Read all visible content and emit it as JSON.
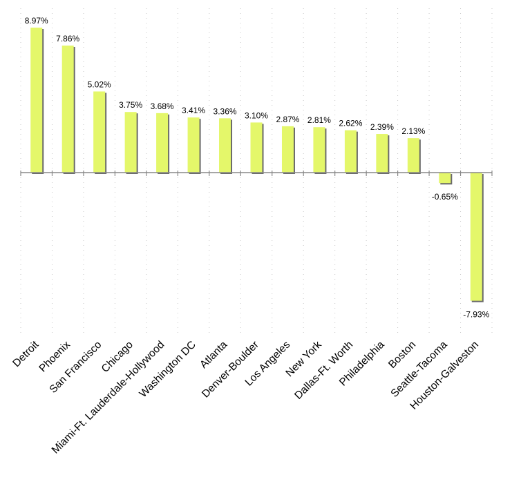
{
  "chart_data": {
    "type": "bar",
    "title": "",
    "xlabel": "",
    "ylabel": "",
    "grid": "vertical dotted",
    "legend": "none",
    "colors": {
      "bar": "#e4f76a",
      "shadow": "#6a6a6a",
      "axis": "#888888",
      "grid": "#c8c8c8"
    },
    "ylim": [
      -10.5,
      9.4
    ],
    "categories": [
      "Detroit",
      "Phoenix",
      "San Francisco",
      "Chicago",
      "Miami-Ft. Lauderdale-Hollywood",
      "Washington DC",
      "Atlanta",
      "Denver-Boulder",
      "Los Angeles",
      "New York",
      "Dallas-Ft. Worth",
      "Philadelphia",
      "Boston",
      "Seattle-Tacoma",
      "Houston-Galveston"
    ],
    "values": [
      8.97,
      7.86,
      5.02,
      3.75,
      3.68,
      3.41,
      3.36,
      3.1,
      2.87,
      2.81,
      2.62,
      2.39,
      2.13,
      -0.65,
      -7.93
    ],
    "value_labels": [
      "8.97%",
      "7.86%",
      "5.02%",
      "3.75%",
      "3.68%",
      "3.41%",
      "3.36%",
      "3.10%",
      "2.87%",
      "2.81%",
      "2.62%",
      "2.39%",
      "2.13%",
      "-0.65%",
      "-7.93%"
    ]
  }
}
